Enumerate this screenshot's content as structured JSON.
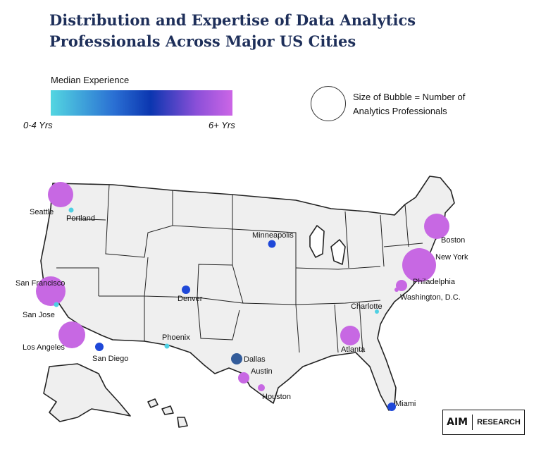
{
  "title": "Distribution and Expertise of Data Analytics Professionals Across Major US Cities",
  "legend": {
    "color_label": "Median Experience",
    "min_label": "0-4 Yrs",
    "max_label": "6+ Yrs",
    "size_label": "Size of Bubble = Number of Analytics Professionals",
    "gradient_colors": [
      "#53d6e1",
      "#0b36b0",
      "#cc66e6"
    ]
  },
  "brand": {
    "logo": "AIM",
    "text": "RESEARCH"
  },
  "cities": [
    {
      "name": "Seattle",
      "size": "large",
      "color": "#c768e3"
    },
    {
      "name": "Portland",
      "size": "tiny",
      "color": "#4fd0e3"
    },
    {
      "name": "San Francisco",
      "size": "large",
      "color": "#c768e3"
    },
    {
      "name": "San Jose",
      "size": "tiny",
      "color": "#4fd0e3"
    },
    {
      "name": "Los Angeles",
      "size": "large",
      "color": "#c768e3"
    },
    {
      "name": "San Diego",
      "size": "small",
      "color": "#1f48d8"
    },
    {
      "name": "Phoenix",
      "size": "tiny",
      "color": "#4fd0e3"
    },
    {
      "name": "Denver",
      "size": "small",
      "color": "#1f48d8"
    },
    {
      "name": "Dallas",
      "size": "small",
      "color": "#335c9a"
    },
    {
      "name": "Austin",
      "size": "small",
      "color": "#c768e3"
    },
    {
      "name": "Houston",
      "size": "tiny",
      "color": "#c768e3"
    },
    {
      "name": "Minneapolis",
      "size": "small",
      "color": "#1f48d8"
    },
    {
      "name": "Boston",
      "size": "large",
      "color": "#c768e3"
    },
    {
      "name": "New York",
      "size": "very-large",
      "color": "#c768e3"
    },
    {
      "name": "Philadelphia",
      "size": "small",
      "color": "#c768e3"
    },
    {
      "name": "Washington, D.C.",
      "size": "tiny",
      "color": "#c768e3"
    },
    {
      "name": "Charlotte",
      "size": "tiny",
      "color": "#4fd0e3"
    },
    {
      "name": "Atlanta",
      "size": "medium",
      "color": "#c768e3"
    },
    {
      "name": "Miami",
      "size": "small",
      "color": "#1f48d8"
    }
  ]
}
